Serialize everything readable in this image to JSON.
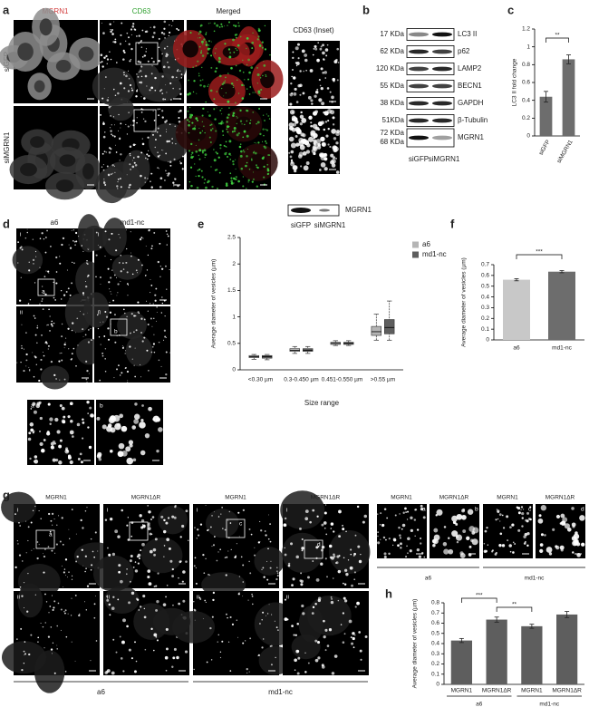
{
  "panels": {
    "a": {
      "label": "a",
      "columns": [
        "MGRN1",
        "CD63",
        "Merged"
      ],
      "inset_title": "CD63 (Inset)",
      "rows": [
        "siGFP",
        "siMGRN1"
      ],
      "blot": {
        "protein": "MGRN1",
        "lanes": [
          "siGFP",
          "siMGRN1"
        ]
      }
    },
    "b": {
      "label": "b",
      "bands": [
        {
          "markers": [
            "17 KDa"
          ],
          "protein": "LC3 II"
        },
        {
          "markers": [
            "62 KDa"
          ],
          "protein": "p62"
        },
        {
          "markers": [
            "120 KDa"
          ],
          "protein": "LAMP2"
        },
        {
          "markers": [
            "55 KDa"
          ],
          "protein": "BECN1"
        },
        {
          "markers": [
            "38 KDa"
          ],
          "protein": "GAPDH"
        },
        {
          "markers": [
            "51KDa"
          ],
          "protein": "β-Tubulin"
        },
        {
          "markers": [
            "72 KDa",
            "68 KDa"
          ],
          "protein": "MGRN1"
        }
      ],
      "lanes": [
        "siGFP",
        "siMGRN1"
      ]
    },
    "c": {
      "label": "c"
    },
    "d": {
      "label": "d",
      "columns": [
        "a6",
        "md1-nc"
      ],
      "rows": [
        "i",
        "ii"
      ],
      "insets": [
        "a",
        "b"
      ]
    },
    "e": {
      "label": "e"
    },
    "f": {
      "label": "f"
    },
    "g": {
      "label": "g",
      "columns": [
        "MGRN1",
        "MGRN1ΔR",
        "MGRN1",
        "MGRN1ΔR"
      ],
      "rows": [
        "i",
        "ii"
      ],
      "groups": [
        "a6",
        "md1-nc"
      ],
      "insets": [
        {
          "name": "MGRN1",
          "label": "a"
        },
        {
          "name": "MGRN1ΔR",
          "label": "b"
        },
        {
          "name": "MGRN1",
          "label": "c"
        },
        {
          "name": "MGRN1ΔR",
          "label": "d"
        }
      ],
      "inset_groups": [
        "a6",
        "md1-nc"
      ]
    },
    "h": {
      "label": "h"
    }
  },
  "chart_data": [
    {
      "type": "bar",
      "ylabel": "LC3 II fold change",
      "categories": [
        "siGFP",
        "siMGRN1"
      ],
      "values": [
        0.44,
        0.86
      ],
      "errors": [
        0.06,
        0.05
      ],
      "color": "#6d6d6d",
      "ylim": [
        0,
        1.2
      ],
      "yticks": [
        0,
        0.2,
        0.4,
        0.6,
        0.8,
        1,
        1.2
      ],
      "annotations": [
        "**"
      ]
    },
    {
      "type": "box",
      "ylabel": "Average diameter of vesicles (µm)",
      "xlabel": "Size range",
      "categories": [
        "<0.30 µm",
        "0.3-0.450 µm",
        "0.451-0.550 µm",
        ">0.55 µm"
      ],
      "series": [
        {
          "name": "a6",
          "color": "#b5b5b5",
          "values": [
            {
              "min": 0.2,
              "q1": 0.23,
              "median": 0.25,
              "q3": 0.27,
              "max": 0.29
            },
            {
              "min": 0.31,
              "q1": 0.35,
              "median": 0.37,
              "q3": 0.4,
              "max": 0.44
            },
            {
              "min": 0.46,
              "q1": 0.48,
              "median": 0.5,
              "q3": 0.52,
              "max": 0.55
            },
            {
              "min": 0.56,
              "q1": 0.65,
              "median": 0.72,
              "q3": 0.82,
              "max": 1.05
            }
          ]
        },
        {
          "name": "md1-nc",
          "color": "#5e5e5e",
          "values": [
            {
              "min": 0.19,
              "q1": 0.22,
              "median": 0.25,
              "q3": 0.27,
              "max": 0.29
            },
            {
              "min": 0.31,
              "q1": 0.35,
              "median": 0.37,
              "q3": 0.4,
              "max": 0.44
            },
            {
              "min": 0.46,
              "q1": 0.48,
              "median": 0.5,
              "q3": 0.52,
              "max": 0.55
            },
            {
              "min": 0.56,
              "q1": 0.68,
              "median": 0.8,
              "q3": 0.95,
              "max": 1.3
            }
          ]
        }
      ],
      "ylim": [
        0,
        2.5
      ],
      "yticks": [
        0,
        0.5,
        1,
        1.5,
        2,
        2.5
      ],
      "legend": "upper right"
    },
    {
      "type": "bar",
      "ylabel": "Average diameter of vesicles (µm)",
      "categories": [
        "a6",
        "md1-nc"
      ],
      "values": [
        0.56,
        0.635
      ],
      "errors": [
        0.01,
        0.01
      ],
      "colors": [
        "#c8c8c8",
        "#6d6d6d"
      ],
      "ylim": [
        0,
        0.7
      ],
      "yticks": [
        0,
        0.1,
        0.2,
        0.3,
        0.4,
        0.5,
        0.6,
        0.7
      ],
      "annotations": [
        "***"
      ]
    },
    {
      "type": "bar",
      "ylabel": "Average diameter of vesicles (µm)",
      "categories": [
        "MGRN1",
        "MGRN1ΔR",
        "MGRN1",
        "MGRN1ΔR"
      ],
      "groups": [
        "a6",
        "md1-nc"
      ],
      "values": [
        0.43,
        0.635,
        0.57,
        0.685
      ],
      "errors": [
        0.02,
        0.025,
        0.02,
        0.03
      ],
      "color": "#5e5e5e",
      "ylim": [
        0,
        0.8
      ],
      "yticks": [
        0,
        0.1,
        0.2,
        0.3,
        0.4,
        0.5,
        0.6,
        0.7,
        0.8
      ],
      "annotations": [
        "***",
        "**"
      ]
    }
  ]
}
